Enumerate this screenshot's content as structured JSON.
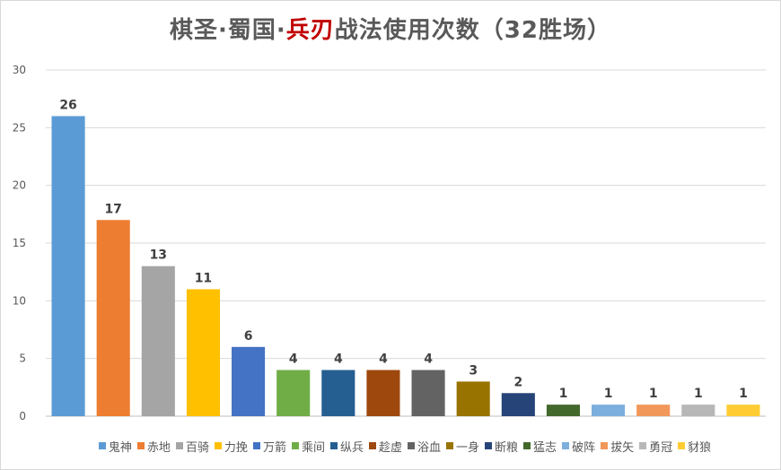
{
  "title": {
    "prefix": "棋圣·蜀国·",
    "accent": "兵刃",
    "suffix": "战法使用次数（32胜场）",
    "accent_color": "#c00000"
  },
  "chart_data": {
    "type": "bar",
    "title": "棋圣·蜀国·兵刃战法使用次数（32胜场）",
    "xlabel": "",
    "ylabel": "",
    "ylim": [
      0,
      30
    ],
    "yticks": [
      0,
      5,
      10,
      15,
      20,
      25,
      30
    ],
    "grid": true,
    "legend_position": "bottom",
    "categories": [
      "鬼神",
      "赤地",
      "百骑",
      "力挽",
      "万箭",
      "乘间",
      "纵兵",
      "趁虚",
      "浴血",
      "一身",
      "断粮",
      "猛志",
      "破阵",
      "拔矢",
      "勇冠",
      "豺狼"
    ],
    "values": [
      26,
      17,
      13,
      11,
      6,
      4,
      4,
      4,
      4,
      3,
      2,
      1,
      1,
      1,
      1,
      1
    ],
    "colors": [
      "#5b9bd5",
      "#ed7d31",
      "#a5a5a5",
      "#ffc000",
      "#4472c4",
      "#70ad47",
      "#255e91",
      "#9e480e",
      "#636363",
      "#997300",
      "#264478",
      "#43682b",
      "#7cafdd",
      "#f1975a",
      "#b7b7b7",
      "#ffcd33"
    ],
    "data_labels": true
  }
}
